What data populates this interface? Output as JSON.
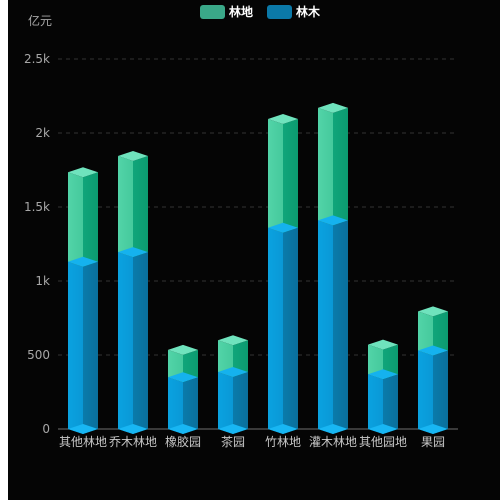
{
  "chart_data": {
    "type": "bar",
    "stacked": true,
    "ylabel": "亿元",
    "ylim": [
      0,
      2500
    ],
    "yticks": [
      0,
      500,
      1000,
      1500,
      2000,
      2500
    ],
    "ytick_labels": [
      "0",
      "500",
      "1k",
      "1.5k",
      "2k",
      "2.5k"
    ],
    "grid": true,
    "legend_position": "top-center",
    "categories": [
      "其他林地",
      "乔木林地",
      "橡胶园",
      "茶园",
      "竹林地",
      "灌木林地",
      "其他园地",
      "果园"
    ],
    "series": [
      {
        "name": "林木",
        "color": "#0a93d0",
        "values": [
          1130,
          1195,
          350,
          385,
          1360,
          1410,
          370,
          530
        ]
      },
      {
        "name": "林地",
        "color": "#3cc79b",
        "values": [
          605,
          650,
          185,
          215,
          735,
          760,
          200,
          265
        ]
      }
    ]
  },
  "legend": {
    "items": [
      {
        "label": "林地",
        "color": "#3aa888"
      },
      {
        "label": "林木",
        "color": "#0b79a8"
      }
    ]
  }
}
